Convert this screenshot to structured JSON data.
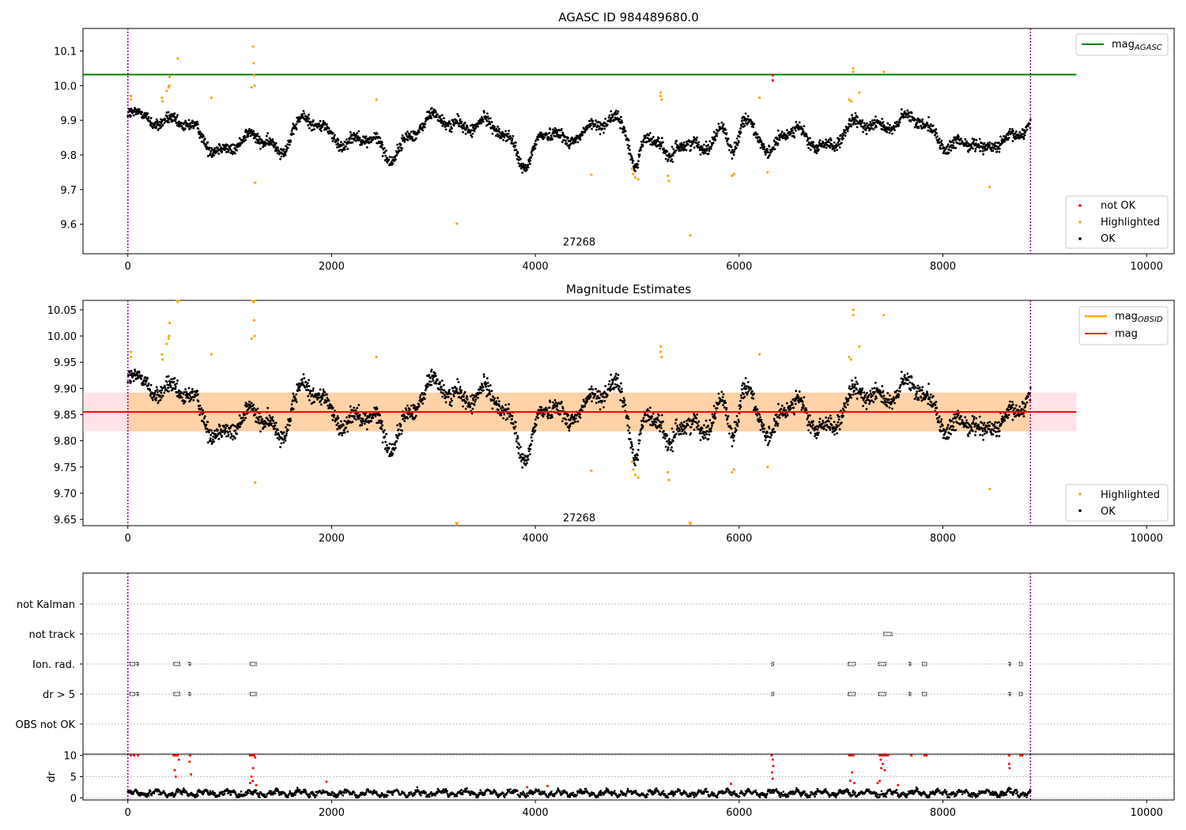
{
  "chart_data": [
    {
      "type": "scatter",
      "title": "AGASC ID 984489680.0",
      "xlim": [
        -440,
        10270
      ],
      "ylim": [
        9.515,
        10.165
      ],
      "xticks": [
        0,
        2000,
        4000,
        6000,
        8000,
        10000
      ],
      "yticks": [
        9.6,
        9.7,
        9.8,
        9.9,
        10.0,
        10.1
      ],
      "vlines": [
        0,
        8860
      ],
      "hline": {
        "name": "mag_AGASC",
        "y": 10.032,
        "xrange": [
          -440,
          9310
        ],
        "color": "#008000"
      },
      "annotation": {
        "text": "27268",
        "x": 4430,
        "y": 9.548
      },
      "legend_upper": [
        {
          "label": "mag",
          "sub": "AGASC",
          "color": "#008000",
          "kind": "line"
        }
      ],
      "legend_lower": [
        {
          "label": "not OK",
          "color": "#ff0000",
          "kind": "dot"
        },
        {
          "label": "Highlighted",
          "color": "#ffa500",
          "kind": "dot"
        },
        {
          "label": "OK",
          "color": "#000000",
          "kind": "dot"
        }
      ],
      "series_not_ok": [
        [
          6330,
          10.015
        ],
        [
          6330,
          10.03
        ]
      ],
      "series_highlighted": [
        [
          30,
          9.97
        ],
        [
          30,
          9.96
        ],
        [
          335,
          9.965
        ],
        [
          340,
          9.955
        ],
        [
          380,
          9.985
        ],
        [
          400,
          9.995
        ],
        [
          405,
          10.0
        ],
        [
          410,
          10.025
        ],
        [
          490,
          10.078
        ],
        [
          820,
          9.965
        ],
        [
          1215,
          9.995
        ],
        [
          1230,
          10.113
        ],
        [
          1235,
          10.065
        ],
        [
          1240,
          10.03
        ],
        [
          1245,
          10.0
        ],
        [
          1250,
          9.72
        ],
        [
          2440,
          9.96
        ],
        [
          3230,
          9.602
        ],
        [
          4550,
          9.743
        ],
        [
          4950,
          9.76
        ],
        [
          4960,
          9.745
        ],
        [
          4980,
          9.735
        ],
        [
          5010,
          9.73
        ],
        [
          5230,
          9.97
        ],
        [
          5230,
          9.98
        ],
        [
          5240,
          9.96
        ],
        [
          5310,
          9.725
        ],
        [
          5300,
          9.74
        ],
        [
          5520,
          9.568
        ],
        [
          5930,
          9.74
        ],
        [
          5950,
          9.745
        ],
        [
          6200,
          9.965
        ],
        [
          6280,
          9.75
        ],
        [
          7080,
          9.96
        ],
        [
          7100,
          9.955
        ],
        [
          7120,
          10.05
        ],
        [
          7120,
          10.04
        ],
        [
          7180,
          9.98
        ],
        [
          7420,
          10.04
        ],
        [
          8460,
          9.708
        ]
      ],
      "ok_wave": {
        "x_start": 0,
        "x_end": 8860,
        "n": 2600,
        "base": 9.862,
        "components": [
          [
            0.03,
            230,
            0.3
          ],
          [
            0.02,
            95,
            1.7
          ],
          [
            0.013,
            41,
            4.1
          ],
          [
            0.01,
            610,
            2.2
          ]
        ],
        "noise": 0.012,
        "bumps": [
          [
            0,
            150,
            0.035
          ],
          [
            300,
            120,
            0.02
          ],
          [
            1500,
            90,
            -0.04
          ],
          [
            2550,
            80,
            -0.04
          ],
          [
            3900,
            90,
            -0.05
          ],
          [
            4300,
            70,
            -0.04
          ],
          [
            4980,
            60,
            -0.08
          ],
          [
            5150,
            120,
            0.03
          ],
          [
            5310,
            60,
            -0.07
          ],
          [
            5940,
            70,
            -0.08
          ],
          [
            6300,
            90,
            -0.06
          ],
          [
            8400,
            90,
            -0.04
          ]
        ]
      }
    },
    {
      "type": "scatter",
      "title": "Magnitude Estimates",
      "xlim": [
        -440,
        10270
      ],
      "ylim": [
        9.638,
        10.068
      ],
      "xticks": [
        0,
        2000,
        4000,
        6000,
        8000,
        10000
      ],
      "yticks": [
        9.65,
        9.7,
        9.75,
        9.8,
        9.85,
        9.9,
        9.95,
        10.0,
        10.05
      ],
      "vlines": [
        0,
        8860
      ],
      "band_obsid": {
        "y0": 9.818,
        "y1": 9.892,
        "xrange": [
          -440,
          9310
        ],
        "color": "#ffa500"
      },
      "band_mag": {
        "y0": 9.818,
        "y1": 9.892,
        "xrange": [
          -440,
          9310
        ],
        "color": "#ffc0cb"
      },
      "hline_mag": {
        "y": 9.855,
        "xrange": [
          -440,
          9310
        ],
        "color": "#ff0000"
      },
      "annotation": {
        "text": "27268",
        "x": 4430,
        "y": 9.652
      },
      "legend_upper": [
        {
          "label": "mag",
          "sub": "OBSID",
          "color": "#ffa500",
          "kind": "line"
        },
        {
          "label": "mag",
          "sub": "",
          "color": "#ff0000",
          "kind": "line"
        }
      ],
      "legend_lower": [
        {
          "label": "Highlighted",
          "color": "#ffa500",
          "kind": "dot"
        },
        {
          "label": "OK",
          "color": "#000000",
          "kind": "dot"
        }
      ]
    },
    {
      "type": "scatter",
      "title": "",
      "xlim": [
        -440,
        10270
      ],
      "categories": [
        "not Kalman",
        "not track",
        "Ion. rad.",
        "dr > 5",
        "OBS not OK"
      ],
      "flag_segments": {
        "not track": [
          [
            7420,
            7500
          ]
        ],
        "Ion. rad.": [
          [
            20,
            70
          ],
          [
            90,
            100
          ],
          [
            450,
            510
          ],
          [
            600,
            610
          ],
          [
            1200,
            1260
          ],
          [
            6320,
            6340
          ],
          [
            7070,
            7140
          ],
          [
            7370,
            7440
          ],
          [
            7670,
            7680
          ],
          [
            7800,
            7840
          ],
          [
            8650,
            8660
          ],
          [
            8750,
            8780
          ]
        ],
        "dr > 5": [
          [
            20,
            70
          ],
          [
            90,
            100
          ],
          [
            450,
            510
          ],
          [
            600,
            610
          ],
          [
            1200,
            1260
          ],
          [
            6320,
            6340
          ],
          [
            7070,
            7140
          ],
          [
            7370,
            7440
          ],
          [
            7670,
            7680
          ],
          [
            7800,
            7840
          ],
          [
            8650,
            8660
          ],
          [
            8750,
            8780
          ]
        ]
      }
    },
    {
      "type": "scatter",
      "title": "",
      "ylabel": "dr",
      "xlim": [
        -440,
        10270
      ],
      "ylim": [
        -0.5,
        10.3
      ],
      "xticks": [
        0,
        2000,
        4000,
        6000,
        8000,
        10000
      ],
      "yticks": [
        0,
        5,
        10
      ],
      "dr_red": [
        [
          30,
          10
        ],
        [
          60,
          10
        ],
        [
          100,
          10
        ],
        [
          450,
          10
        ],
        [
          470,
          10
        ],
        [
          490,
          10
        ],
        [
          500,
          9
        ],
        [
          460,
          6.5
        ],
        [
          470,
          5
        ],
        [
          610,
          10
        ],
        [
          605,
          8.5
        ],
        [
          620,
          5.5
        ],
        [
          1200,
          10
        ],
        [
          1220,
          10
        ],
        [
          1240,
          10
        ],
        [
          1250,
          9.5
        ],
        [
          1230,
          7
        ],
        [
          1215,
          5
        ],
        [
          1200,
          3.5
        ],
        [
          1225,
          4
        ],
        [
          1260,
          3
        ],
        [
          1950,
          3.8
        ],
        [
          3920,
          2.5
        ],
        [
          4120,
          2.8
        ],
        [
          5920,
          3.3
        ],
        [
          6320,
          10
        ],
        [
          6330,
          9
        ],
        [
          6335,
          7.5
        ],
        [
          6325,
          6
        ],
        [
          6330,
          4.5
        ],
        [
          7080,
          10
        ],
        [
          7100,
          10
        ],
        [
          7120,
          10
        ],
        [
          7110,
          6
        ],
        [
          7090,
          4
        ],
        [
          7130,
          3.5
        ],
        [
          7380,
          10
        ],
        [
          7400,
          10
        ],
        [
          7420,
          10
        ],
        [
          7440,
          10
        ],
        [
          7460,
          10
        ],
        [
          7390,
          9
        ],
        [
          7410,
          8
        ],
        [
          7395,
          7
        ],
        [
          7430,
          6.5
        ],
        [
          7380,
          4
        ],
        [
          7360,
          3.5
        ],
        [
          7560,
          3
        ],
        [
          7690,
          10
        ],
        [
          7820,
          10
        ],
        [
          7840,
          10
        ],
        [
          8650,
          10
        ],
        [
          8650,
          8
        ],
        [
          8655,
          7
        ],
        [
          8760,
          10
        ],
        [
          8780,
          10
        ]
      ]
    }
  ]
}
